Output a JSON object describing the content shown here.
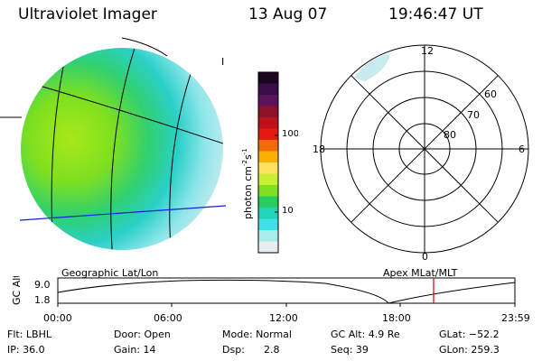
{
  "header": {
    "instrument": "Ultraviolet Imager",
    "date": "13 Aug 07",
    "time": "19:46:47 UT"
  },
  "image_panel": {
    "caption": "Geographic Lat/Lon",
    "edge_mark": "I"
  },
  "colorbar": {
    "label": "photon cm",
    "label_exp1": "-2",
    "label_mid": "s",
    "label_exp2": "-1",
    "ticks": [
      "100",
      "10"
    ],
    "colors": [
      "#1a0620",
      "#3a0c4a",
      "#5a145e",
      "#8a1224",
      "#c0101a",
      "#e41a12",
      "#f46a06",
      "#fbb000",
      "#ffe060",
      "#c8f030",
      "#7ee020",
      "#28cc60",
      "#20d4b8",
      "#40e0e8",
      "#a8ecec",
      "#e6eef0"
    ]
  },
  "polar_panel": {
    "caption": "Apex  MLat/MLT",
    "mlt_labels": {
      "top": "12",
      "right": "6",
      "bottom": "0",
      "left": "18"
    },
    "lat_labels": [
      "60",
      "70",
      "80"
    ]
  },
  "orbit_plot": {
    "y_label": "GC Alt",
    "y_ticks": [
      "9.0",
      "1.8"
    ],
    "x_ticks": [
      "00:00",
      "06:00",
      "12:00",
      "18:00",
      "23:59"
    ],
    "marker_color": "#e00000"
  },
  "status": {
    "flt": "Flt: LBHL",
    "ip": "IP: 36.0",
    "door": "Door: Open",
    "gain": "Gain: 14",
    "mode": "Mode: Normal",
    "dsp_label": "Dsp:",
    "dsp_value": "2.8",
    "gc_alt": "GC Alt: 4.9 Re",
    "seq": "Seq: 39",
    "glat": "GLat: −52.2",
    "glon": "GLon: 259.3"
  }
}
